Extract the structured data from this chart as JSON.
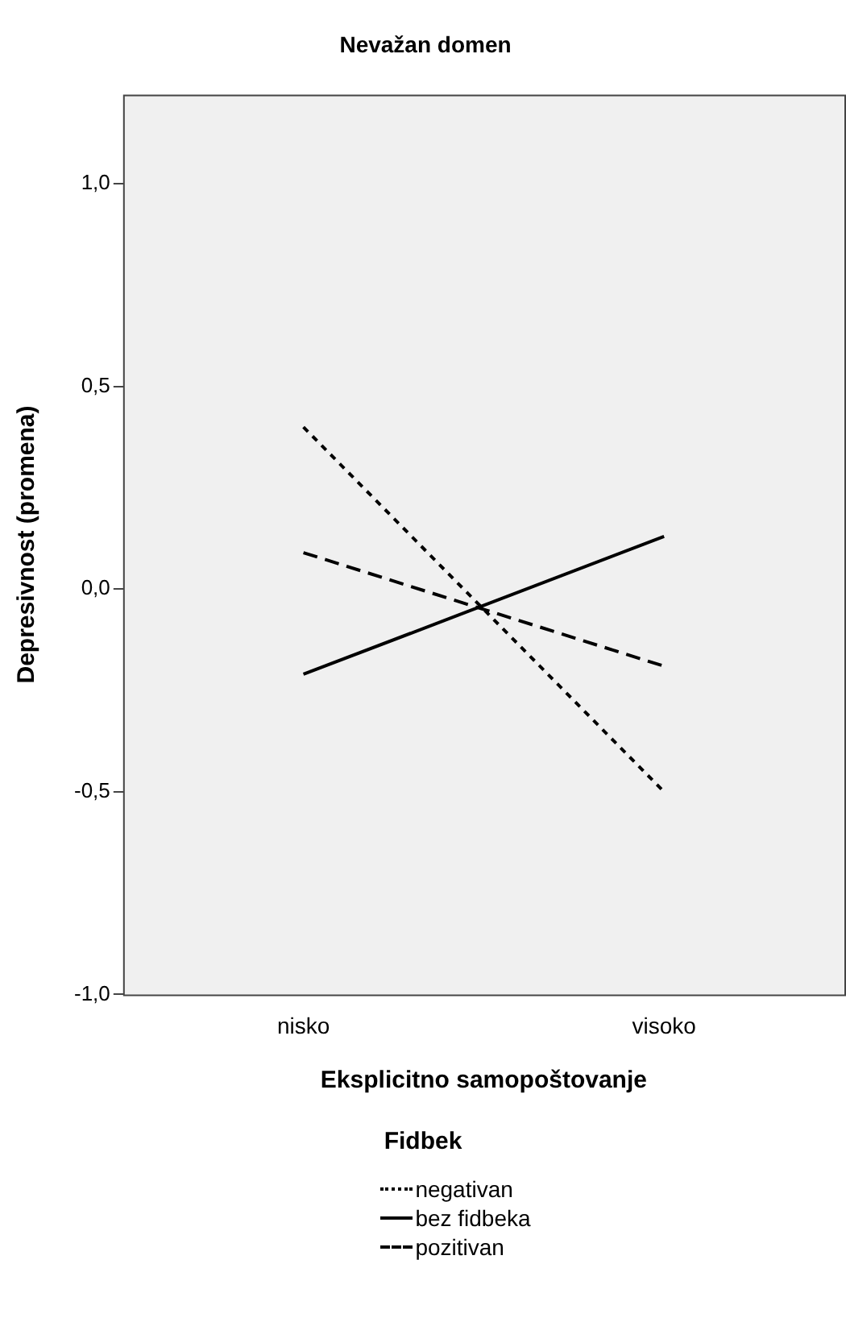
{
  "chart_data": {
    "type": "line",
    "title": "Nevažan domen",
    "xlabel": "Eksplicitno samopoštovanje",
    "ylabel": "Depresivnost (promena)",
    "legend_title": "Fidbek",
    "legend": "bottom",
    "grid": false,
    "marker": "none",
    "categories": [
      "nisko",
      "visoko"
    ],
    "series": [
      {
        "name": "negativan",
        "color": "#000000",
        "line_style": "dotted",
        "values": [
          0.4,
          -0.5
        ]
      },
      {
        "name": "bez fidbeka",
        "color": "#000000",
        "line_style": "solid",
        "values": [
          -0.21,
          0.13
        ]
      },
      {
        "name": "pozitivan",
        "color": "#000000",
        "line_style": "dashed",
        "values": [
          0.09,
          -0.19
        ]
      }
    ],
    "ylim": [
      -1.0,
      1.22
    ],
    "yticks": [
      {
        "value": -1.0,
        "label": "-1,0"
      },
      {
        "value": -0.5,
        "label": "-0,5"
      },
      {
        "value": 0.0,
        "label": "0,0"
      },
      {
        "value": 0.5,
        "label": "0,5"
      },
      {
        "value": 1.0,
        "label": "1,0"
      }
    ]
  }
}
